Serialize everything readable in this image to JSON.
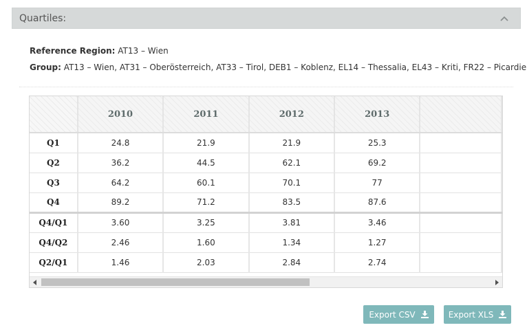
{
  "panel": {
    "title": "Quartiles:"
  },
  "reference": {
    "label": "Reference Region:",
    "value": "AT13 – Wien"
  },
  "group": {
    "label": "Group:",
    "value": "AT13 – Wien, AT31 – Oberösterreich, AT33 – Tirol, DEB1 – Koblenz, EL14 – Thessalia, EL43 – Kriti, FR22 – Picardie"
  },
  "table": {
    "years": [
      "2010",
      "2011",
      "2012",
      "2013",
      ""
    ],
    "rows": [
      {
        "label": "Q1",
        "values": [
          "24.8",
          "21.9",
          "21.9",
          "25.3",
          ""
        ]
      },
      {
        "label": "Q2",
        "values": [
          "36.2",
          "44.5",
          "62.1",
          "69.2",
          ""
        ]
      },
      {
        "label": "Q3",
        "values": [
          "64.2",
          "60.1",
          "70.1",
          "77",
          ""
        ]
      },
      {
        "label": "Q4",
        "values": [
          "89.2",
          "71.2",
          "83.5",
          "87.6",
          ""
        ]
      },
      {
        "label": "Q4/Q1",
        "values": [
          "3.60",
          "3.25",
          "3.81",
          "3.46",
          ""
        ]
      },
      {
        "label": "Q4/Q2",
        "values": [
          "2.46",
          "1.60",
          "1.34",
          "1.27",
          ""
        ]
      },
      {
        "label": "Q2/Q1",
        "values": [
          "1.46",
          "2.03",
          "2.84",
          "2.74",
          ""
        ]
      }
    ]
  },
  "buttons": {
    "export_csv": "Export CSV",
    "export_xls": "Export XLS"
  },
  "icons": {
    "collapse": "chevron-up-icon",
    "download": "download-icon",
    "scroll_left": "arrow-left-icon",
    "scroll_right": "arrow-right-icon"
  },
  "colors": {
    "header_bg": "#d6d9d9",
    "button_bg": "#7fb8ba"
  }
}
